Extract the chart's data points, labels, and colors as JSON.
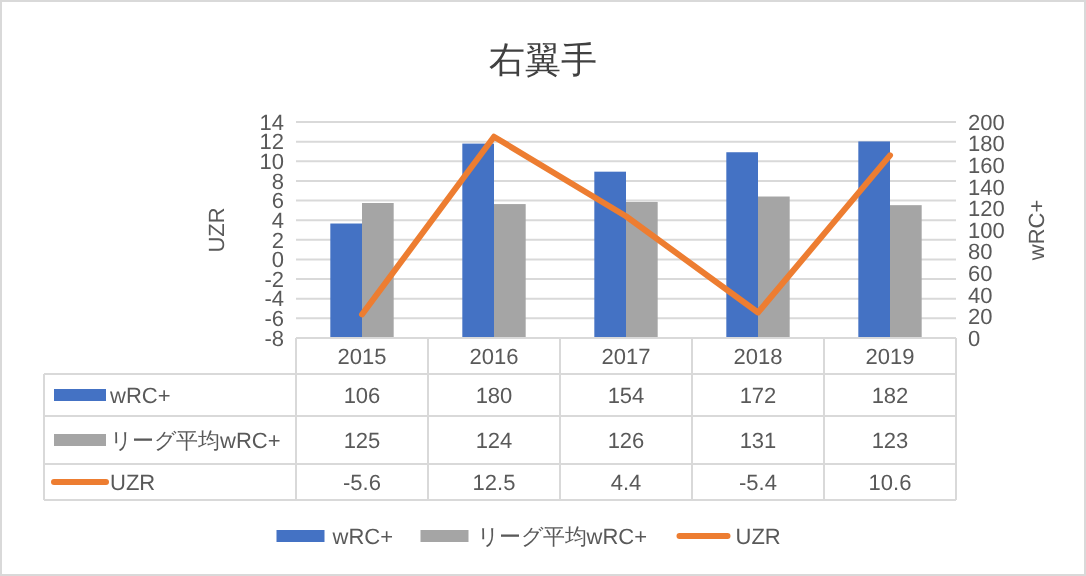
{
  "chart_data": {
    "type": "bar",
    "title": "右翼手",
    "ylabel": "UZR",
    "y2label": "wRC+",
    "categories": [
      "2015",
      "2016",
      "2017",
      "2018",
      "2019"
    ],
    "series": [
      {
        "name": "wRC+",
        "color": "#4472c4",
        "axis": "y2",
        "values": [
          106,
          180,
          154,
          172,
          182
        ]
      },
      {
        "name": "リーグ平均wRC+",
        "color": "#a5a5a5",
        "axis": "y2",
        "values": [
          125,
          124,
          126,
          131,
          123
        ]
      },
      {
        "name": "UZR",
        "type": "line",
        "color": "#ed7d31",
        "axis": "y",
        "values": [
          -5.6,
          12.5,
          4.4,
          -5.4,
          10.6
        ]
      }
    ],
    "ylim": [
      -8,
      14
    ],
    "yticks": [
      -8,
      -6,
      -4,
      -2,
      0,
      2,
      4,
      6,
      8,
      10,
      12,
      14
    ],
    "y2lim": [
      0,
      200
    ],
    "y2ticks": [
      0,
      20,
      40,
      60,
      80,
      100,
      120,
      140,
      160,
      180,
      200
    ],
    "grid": "y",
    "data_labels": true,
    "legend": "bottom"
  }
}
